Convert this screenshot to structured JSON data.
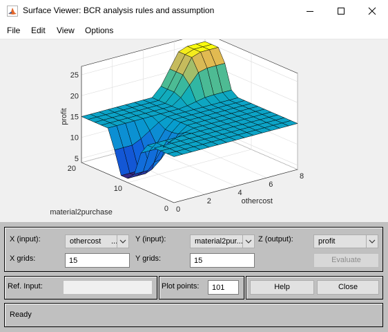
{
  "window": {
    "title": "Surface Viewer: BCR analysis rules and assumption"
  },
  "menu": [
    "File",
    "Edit",
    "View",
    "Options"
  ],
  "chart_data": {
    "type": "surface",
    "zlabel": "profit",
    "xlabel": "othercost",
    "ylabel": "material2purchase",
    "x_ticks": [
      "0",
      "2",
      "4",
      "6",
      "8"
    ],
    "y_ticks": [
      "0",
      "10",
      "20"
    ],
    "z_ticks": [
      "5",
      "10",
      "15",
      "20",
      "25"
    ],
    "xlim": [
      0,
      8
    ],
    "ylim": [
      0,
      20
    ],
    "zlim": [
      4,
      27
    ],
    "grid": true,
    "colormap": "parula"
  },
  "controls": {
    "x_input_label": "X (input):",
    "x_input_value": "othercost",
    "y_input_label": "Y (input):",
    "y_input_value": "material2pur...",
    "z_output_label": "Z (output):",
    "z_output_value": "profit",
    "x_grids_label": "X grids:",
    "x_grids_value": "15",
    "y_grids_label": "Y grids:",
    "y_grids_value": "15",
    "evaluate_label": "Evaluate",
    "ref_input_label": "Ref. Input:",
    "ref_input_value": "",
    "plot_points_label": "Plot points:",
    "plot_points_value": "101",
    "help_label": "Help",
    "close_label": "Close",
    "status": "Ready"
  }
}
